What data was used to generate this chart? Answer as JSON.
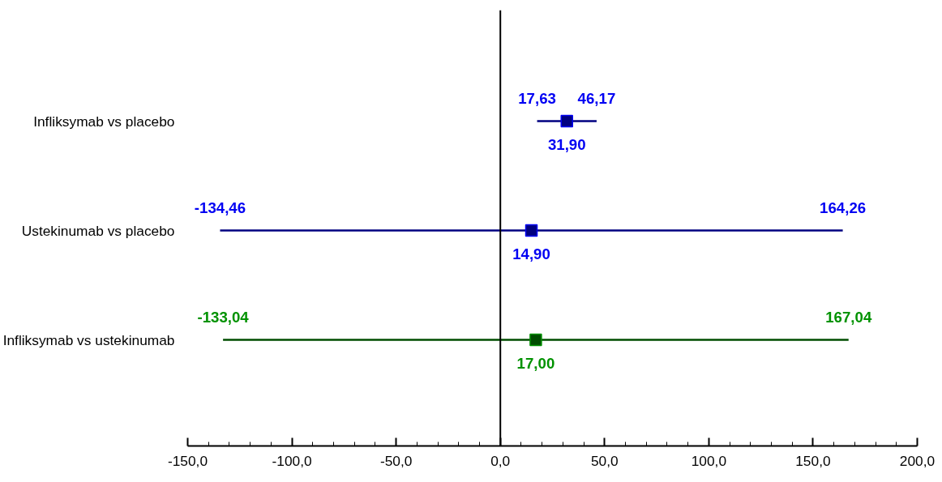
{
  "chart_data": {
    "type": "scatter",
    "orientation": "horizontal",
    "marker": "square",
    "categories": [
      "Infliksymab vs placebo",
      "Ustekinumab vs placebo",
      "Infliksymab vs ustekinumab"
    ],
    "values": [
      31.9,
      14.9,
      17.0
    ],
    "errors": [
      [
        17.63,
        46.17
      ],
      [
        -134.46,
        164.26
      ],
      [
        -133.04,
        167.04
      ]
    ],
    "colors": [
      "#000080",
      "#000080",
      "#004d00"
    ],
    "value_labels": [
      "31,90",
      "14,90",
      "17,00"
    ],
    "annotations": [
      {
        "text": "17,63",
        "x": 17.63,
        "y": "Infliksymab vs placebo"
      },
      {
        "text": "46,17",
        "x": 46.17,
        "y": "Infliksymab vs placebo"
      },
      {
        "text": "-134,46",
        "x": -134.46,
        "y": "Ustekinumab vs placebo"
      },
      {
        "text": "164,26",
        "x": 164.26,
        "y": "Ustekinumab vs placebo"
      },
      {
        "text": "-133,04",
        "x": -133.04,
        "y": "Infliksymab vs ustekinumab"
      },
      {
        "text": "167,04",
        "x": 167.04,
        "y": "Infliksymab vs ustekinumab"
      }
    ],
    "ref_lines": [
      {
        "axis": "x",
        "value": 0,
        "color": "#000000"
      }
    ],
    "xlim": [
      -150,
      200
    ],
    "xticks": [
      {
        "value": -150,
        "label": "-150,0"
      },
      {
        "value": -100,
        "label": "-100,0"
      },
      {
        "value": -50,
        "label": "-50,0"
      },
      {
        "value": 0,
        "label": "0,0"
      },
      {
        "value": 50,
        "label": "50,0"
      },
      {
        "value": 100,
        "label": "100,0"
      },
      {
        "value": 150,
        "label": "150,0"
      },
      {
        "value": 200,
        "label": "200,0"
      }
    ],
    "grid": false,
    "tick_labels": "x"
  }
}
